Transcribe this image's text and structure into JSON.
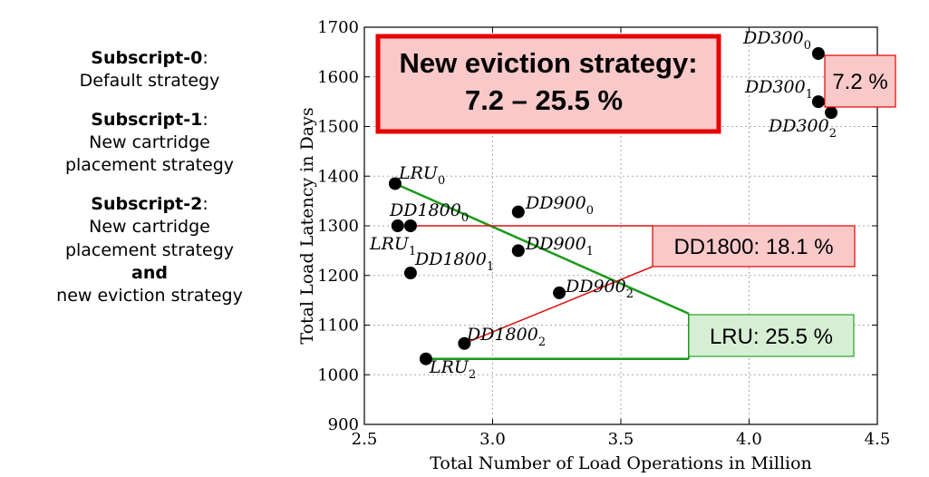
{
  "legend": [
    {
      "head": "Subscript-0",
      "sep": ":",
      "lines": [
        "Default strategy"
      ]
    },
    {
      "head": "Subscript-1",
      "sep": ":",
      "lines": [
        "New cartridge",
        "placement strategy"
      ]
    },
    {
      "head": "Subscript-2",
      "sep": ":",
      "lines": [
        "New cartridge",
        "placement strategy"
      ],
      "bold_line": "and",
      "tail": "new eviction strategy"
    }
  ],
  "chart_data": {
    "type": "scatter",
    "xlabel": "Total Number of Load Operations in Million",
    "ylabel": "Total Load Latency in Days",
    "xlim": [
      2.5,
      4.5
    ],
    "ylim": [
      900,
      1700
    ],
    "xticks": [
      "2.5",
      "3.0",
      "3.5",
      "4.0",
      "4.5"
    ],
    "yticks": [
      "900",
      "1000",
      "1100",
      "1200",
      "1300",
      "1400",
      "1500",
      "1600",
      "1700"
    ],
    "grid": true,
    "points": [
      {
        "name": "LRU",
        "sub": "0",
        "x": 2.62,
        "y": 1385
      },
      {
        "name": "LRU",
        "sub": "1",
        "x": 2.63,
        "y": 1300
      },
      {
        "name": "LRU",
        "sub": "2",
        "x": 2.74,
        "y": 1032
      },
      {
        "name": "DD1800",
        "sub": "0",
        "x": 2.68,
        "y": 1300
      },
      {
        "name": "DD1800",
        "sub": "1",
        "x": 2.68,
        "y": 1205
      },
      {
        "name": "DD1800",
        "sub": "2",
        "x": 2.89,
        "y": 1063
      },
      {
        "name": "DD900",
        "sub": "0",
        "x": 3.1,
        "y": 1328
      },
      {
        "name": "DD900",
        "sub": "1",
        "x": 3.1,
        "y": 1250
      },
      {
        "name": "DD900",
        "sub": "2",
        "x": 3.26,
        "y": 1165
      },
      {
        "name": "DD300",
        "sub": "0",
        "x": 4.27,
        "y": 1647
      },
      {
        "name": "DD300",
        "sub": "1",
        "x": 4.27,
        "y": 1550
      },
      {
        "name": "DD300",
        "sub": "2",
        "x": 4.32,
        "y": 1528
      }
    ],
    "annotations": {
      "headline_line1": "New eviction strategy:",
      "headline_line2": "7.2 – 25.5 %",
      "dd300_label": "7.2 %",
      "dd1800_label": "DD1800: 18.1 %",
      "lru_label": "LRU: 25.5 %"
    },
    "colors": {
      "lru_line": "#1a9a1a",
      "dd1800_line": "#dd1111",
      "red_box_fill": "#f9c8c8",
      "red_box_stroke": "#e60000",
      "green_box_fill": "#d6efd4",
      "green_box_stroke": "#2aa02a",
      "grid": "#aaaaaa"
    }
  }
}
